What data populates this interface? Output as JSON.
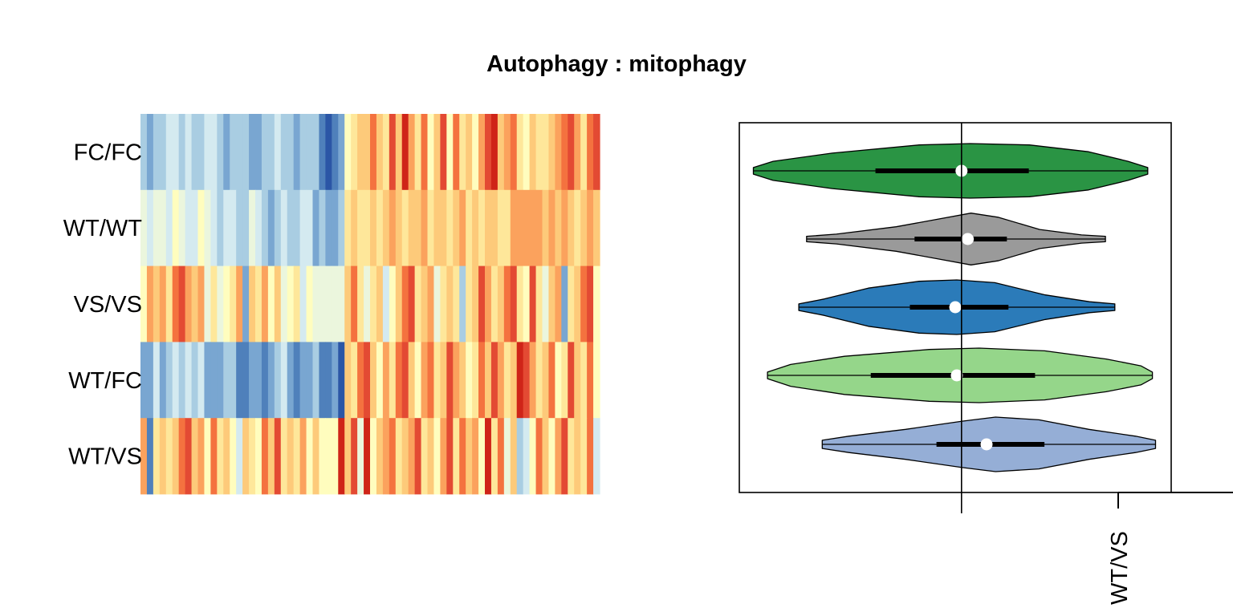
{
  "title": "Autophagy : mitophagy",
  "colors": {
    "palette": [
      "#2b56a6",
      "#4f80bb",
      "#79a6d1",
      "#a9cde2",
      "#d4eaf0",
      "#ebf6dd",
      "#fffdbe",
      "#fee79a",
      "#fdca7a",
      "#fba25d",
      "#f4723f",
      "#e34a33",
      "#cf2418"
    ],
    "green": "#2a9444",
    "gray": "#9a9a9a",
    "blue": "#2b7bb9",
    "lightgreen": "#95d68a",
    "lightblue": "#95aed6"
  },
  "chart_data": [
    {
      "type": "heatmap",
      "rows": [
        "FC/FC",
        "WT/WT",
        "VS/VS",
        "WT/FC",
        "WT/VS"
      ],
      "columns_count": 72,
      "color_scale": "diverging blue (low) to red (high)",
      "values": [
        [
          3,
          2,
          3,
          3,
          4,
          4,
          3,
          4,
          3,
          3,
          4,
          4,
          3,
          2,
          3,
          3,
          3,
          2,
          2,
          3,
          3,
          4,
          3,
          3,
          2,
          3,
          3,
          3,
          1,
          0,
          1,
          2,
          6,
          7,
          8,
          8,
          10,
          8,
          7,
          11,
          8,
          12,
          9,
          7,
          10,
          6,
          8,
          11,
          6,
          10,
          7,
          8,
          6,
          9,
          11,
          12,
          8,
          9,
          10,
          7,
          6,
          8,
          7,
          7,
          8,
          9,
          10,
          11,
          9,
          7,
          10,
          11
        ],
        [
          5,
          4,
          5,
          5,
          4,
          6,
          5,
          4,
          4,
          6,
          5,
          4,
          3,
          4,
          4,
          3,
          3,
          5,
          4,
          3,
          2,
          3,
          4,
          3,
          3,
          4,
          4,
          2,
          3,
          2,
          2,
          3,
          7,
          8,
          7,
          7,
          8,
          7,
          8,
          9,
          8,
          7,
          8,
          8,
          9,
          7,
          8,
          8,
          7,
          8,
          9,
          7,
          8,
          7,
          8,
          8,
          7,
          7,
          9,
          9,
          9,
          9,
          9,
          8,
          9,
          8,
          9,
          8,
          7,
          8,
          9,
          8
        ],
        [
          6,
          9,
          8,
          9,
          7,
          10,
          11,
          9,
          8,
          9,
          5,
          7,
          5,
          6,
          7,
          9,
          2,
          8,
          7,
          9,
          6,
          8,
          5,
          6,
          7,
          4,
          6,
          5,
          5,
          5,
          5,
          5,
          8,
          10,
          7,
          5,
          7,
          8,
          4,
          6,
          8,
          10,
          11,
          7,
          8,
          9,
          5,
          7,
          8,
          7,
          3,
          7,
          8,
          11,
          9,
          7,
          8,
          10,
          11,
          7,
          6,
          11,
          7,
          5,
          8,
          9,
          2,
          7,
          8,
          10,
          11,
          6
        ],
        [
          2,
          2,
          4,
          2,
          3,
          4,
          3,
          4,
          3,
          4,
          2,
          2,
          2,
          3,
          3,
          1,
          1,
          2,
          2,
          1,
          2,
          3,
          4,
          2,
          1,
          2,
          2,
          3,
          1,
          1,
          2,
          0,
          8,
          7,
          10,
          11,
          8,
          6,
          9,
          7,
          10,
          11,
          8,
          6,
          9,
          10,
          7,
          8,
          11,
          9,
          8,
          6,
          7,
          10,
          8,
          11,
          9,
          7,
          8,
          12,
          11,
          9,
          7,
          8,
          10,
          6,
          7,
          11,
          8,
          7,
          10,
          6
        ],
        [
          9,
          1,
          7,
          8,
          7,
          8,
          10,
          11,
          8,
          9,
          6,
          10,
          7,
          8,
          6,
          4,
          8,
          7,
          6,
          10,
          8,
          11,
          7,
          8,
          7,
          9,
          6,
          8,
          6,
          6,
          6,
          12,
          8,
          11,
          5,
          12,
          6,
          8,
          9,
          10,
          7,
          8,
          9,
          11,
          7,
          8,
          6,
          9,
          11,
          7,
          10,
          8,
          9,
          6,
          12,
          7,
          10,
          5,
          8,
          3,
          4,
          6,
          10,
          8,
          6,
          9,
          11,
          7,
          8,
          7,
          10,
          4
        ]
      ]
    },
    {
      "type": "violin",
      "orientation": "horizontal",
      "series": [
        {
          "color_key": "green",
          "min": -1.33,
          "q1": -0.55,
          "median": 0.0,
          "q3": 0.43,
          "max": 1.19
        },
        {
          "color_key": "gray",
          "min": -0.99,
          "q1": -0.3,
          "median": 0.04,
          "q3": 0.29,
          "max": 0.92
        },
        {
          "color_key": "blue",
          "min": -1.04,
          "q1": -0.33,
          "median": -0.04,
          "q3": 0.3,
          "max": 0.98
        },
        {
          "color_key": "lightgreen",
          "min": -1.24,
          "q1": -0.58,
          "median": -0.03,
          "q3": 0.47,
          "max": 1.22
        },
        {
          "color_key": "lightblue",
          "min": -0.89,
          "q1": -0.16,
          "median": 0.16,
          "q3": 0.53,
          "max": 1.24
        }
      ],
      "xlim": [
        -1.42,
        1.34
      ],
      "reference_line": 0,
      "outer_axis_tick_label": "WT/VS"
    }
  ]
}
